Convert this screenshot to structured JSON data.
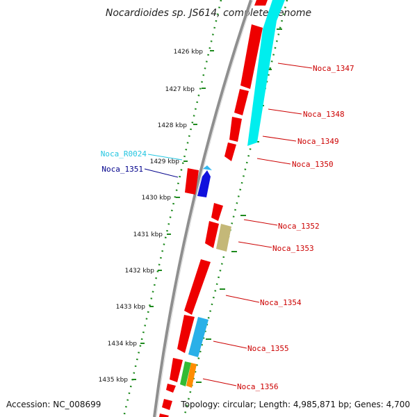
{
  "title": "Nocardioides sp. JS614, complete genome",
  "accession": "Accession: NC_008699",
  "summary": "Topology: circular; Length: 4,985,871 bp; Genes: 4,700",
  "colors": {
    "backbone": "#8c8c8c",
    "tick": "#1e8a1e",
    "cds": "#ee0000",
    "label_red": "#cc0000",
    "label_blue": "#00008b",
    "label_cyan": "#22c5e0"
  },
  "ticks": [
    "1426 kbp",
    "1427 kbp",
    "1428 kbp",
    "1429 kbp",
    "1430 kbp",
    "1431 kbp",
    "1432 kbp",
    "1433 kbp",
    "1434 kbp",
    "1435 kbp"
  ],
  "labels": [
    {
      "text": "Noca_1347",
      "side": "right",
      "color": "#cc0000"
    },
    {
      "text": "Noca_1348",
      "side": "right",
      "color": "#cc0000"
    },
    {
      "text": "Noca_1349",
      "side": "right",
      "color": "#cc0000"
    },
    {
      "text": "Noca_1350",
      "side": "right",
      "color": "#cc0000"
    },
    {
      "text": "Noca_R0024",
      "side": "left",
      "color": "#22c5e0"
    },
    {
      "text": "Noca_1351",
      "side": "left",
      "color": "#00008b"
    },
    {
      "text": "Noca_1352",
      "side": "right",
      "color": "#cc0000"
    },
    {
      "text": "Noca_1353",
      "side": "right",
      "color": "#cc0000"
    },
    {
      "text": "Noca_1354",
      "side": "right",
      "color": "#cc0000"
    },
    {
      "text": "Noca_1355",
      "side": "right",
      "color": "#cc0000"
    },
    {
      "text": "Noca_1356",
      "side": "right",
      "color": "#cc0000"
    }
  ]
}
